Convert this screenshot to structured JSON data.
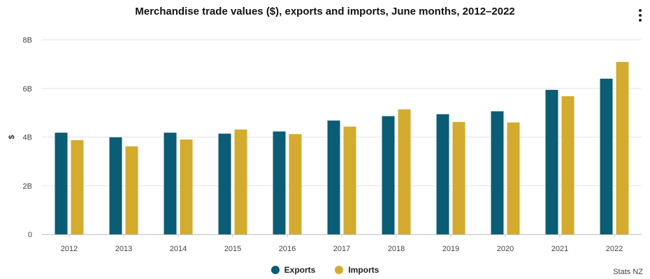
{
  "chart_data": {
    "type": "bar",
    "title": "Merchandise trade values ($), exports and imports, June months, 2012–2022",
    "xlabel": "",
    "ylabel": "$",
    "ylim": [
      0,
      8000000000
    ],
    "yticks": [
      {
        "value": 0,
        "label": "0"
      },
      {
        "value": 2000000000,
        "label": "2B"
      },
      {
        "value": 4000000000,
        "label": "4B"
      },
      {
        "value": 6000000000,
        "label": "6B"
      },
      {
        "value": 8000000000,
        "label": "8B"
      }
    ],
    "categories": [
      "2012",
      "2013",
      "2014",
      "2015",
      "2016",
      "2017",
      "2018",
      "2019",
      "2020",
      "2021",
      "2022"
    ],
    "series": [
      {
        "name": "Exports",
        "color": "#0b5c75",
        "values": [
          4180000000,
          3990000000,
          4180000000,
          4140000000,
          4230000000,
          4680000000,
          4860000000,
          4940000000,
          5060000000,
          5940000000,
          6400000000
        ]
      },
      {
        "name": "Imports",
        "color": "#d3ab2f",
        "values": [
          3870000000,
          3620000000,
          3900000000,
          4310000000,
          4120000000,
          4430000000,
          5140000000,
          4620000000,
          4600000000,
          5680000000,
          7090000000
        ]
      }
    ],
    "grid": true,
    "legend_position": "bottom-center"
  },
  "credit": "Stats NZ",
  "menu_icon": "vertical-ellipsis-icon"
}
